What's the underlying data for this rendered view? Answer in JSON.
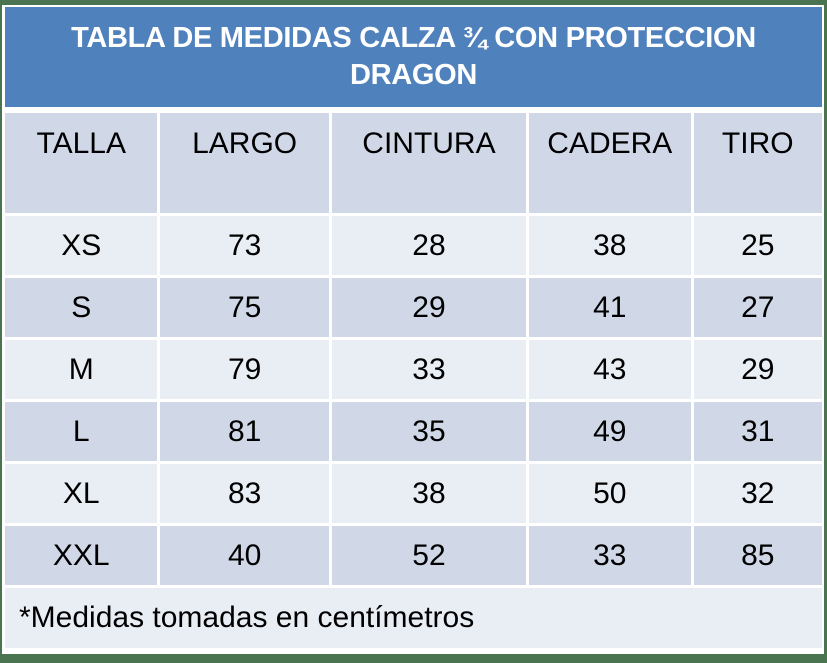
{
  "title": {
    "line1": "TABLA DE MEDIDAS CALZA ¾  CON PROTECCION",
    "line2": "DRAGON"
  },
  "colors": {
    "header_blue": "#4f81bd",
    "row_light": "#e9edf4",
    "row_dark": "#d0d8e8",
    "outer_border": "#4a7350"
  },
  "table": {
    "columns": [
      "TALLA",
      "LARGO",
      "CINTURA",
      "CADERA",
      "TIRO"
    ],
    "rows": [
      [
        "XS",
        "73",
        "28",
        "38",
        "25"
      ],
      [
        "S",
        "75",
        "29",
        "41",
        "27"
      ],
      [
        "M",
        "79",
        "33",
        "43",
        "29"
      ],
      [
        "L",
        "81",
        "35",
        "49",
        "31"
      ],
      [
        "XL",
        "83",
        "38",
        "50",
        "32"
      ],
      [
        "XXL",
        "40",
        "52",
        "33",
        "85"
      ]
    ]
  },
  "footer": {
    "note": "*Medidas tomadas en centímetros"
  }
}
